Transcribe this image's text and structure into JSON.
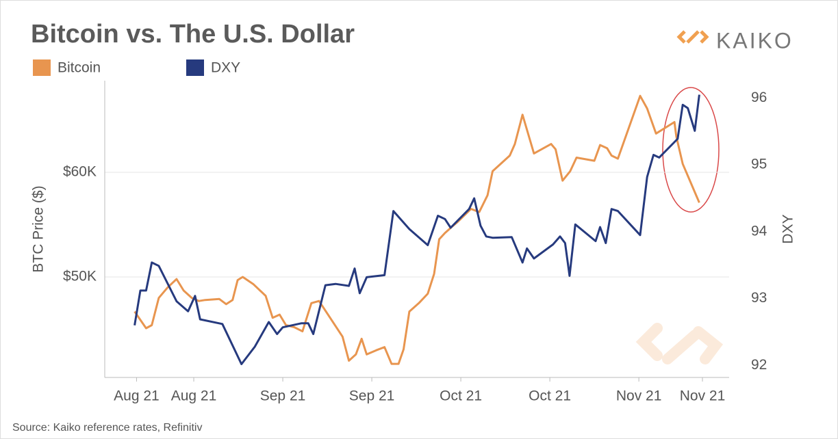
{
  "chart_data": {
    "type": "line",
    "title": "Bitcoin vs. The U.S. Dollar",
    "brand": "KAIKO",
    "source": "Source: Kaiko reference rates, Refinitiv",
    "ylabel": "BTC Price ($)",
    "y2label": "DXY",
    "xlim": [
      0,
      98.2
    ],
    "xticks": [
      {
        "value": 5,
        "label": "Aug 21"
      },
      {
        "value": 14,
        "label": "Aug 21"
      },
      {
        "value": 28,
        "label": "Sep 21"
      },
      {
        "value": 42,
        "label": "Sep 21"
      },
      {
        "value": 56,
        "label": "Oct 21"
      },
      {
        "value": 70,
        "label": "Oct 21"
      },
      {
        "value": 84,
        "label": "Nov 21"
      },
      {
        "value": 94,
        "label": "Nov 21"
      }
    ],
    "ylim": [
      40400,
      68750
    ],
    "yticks": [
      {
        "value": 50000,
        "label": "$50K"
      },
      {
        "value": 60000,
        "label": "$60K"
      }
    ],
    "y2lim": [
      91.82,
      96.26
    ],
    "y2ticks": [
      92,
      93,
      94,
      95,
      96
    ],
    "grid": true,
    "series": [
      {
        "name": "Bitcoin",
        "color": "#e8954f",
        "x": [
          4.7,
          6.5,
          7.4,
          8.5,
          9.9,
          11.3,
          12.4,
          13.7,
          14.8,
          15.8,
          18.0,
          19.1,
          20.1,
          20.9,
          21.7,
          23.4,
          25.3,
          26.4,
          27.5,
          28.5,
          29.8,
          31.1,
          32.5,
          33.7,
          35.0,
          37.4,
          38.4,
          39.5,
          40.4,
          41.2,
          42.7,
          44.0,
          45.1,
          46.2,
          47.0,
          47.9,
          49.4,
          50.8,
          51.8,
          52.6,
          53.5,
          54.6,
          55.4,
          57.6,
          58.9,
          60.2,
          61.0,
          63.7,
          64.5,
          65.7,
          67.5,
          70.2,
          70.9,
          72.0,
          73.2,
          74.2,
          77.0,
          77.9,
          79.0,
          79.7,
          80.7,
          84.2,
          85.3,
          86.7,
          89.6,
          89.9,
          90.9,
          93.5
        ],
        "values": [
          46700,
          45100,
          45400,
          48000,
          49000,
          49800,
          48700,
          48000,
          47700,
          47800,
          47900,
          47400,
          47800,
          49700,
          50000,
          49300,
          48200,
          46100,
          46400,
          45400,
          45200,
          44800,
          47500,
          47700,
          46500,
          44300,
          42000,
          42600,
          44100,
          42600,
          43000,
          43300,
          41700,
          41700,
          43100,
          46700,
          47500,
          48400,
          50300,
          53600,
          54200,
          54800,
          55200,
          56500,
          56200,
          57800,
          60100,
          61600,
          62700,
          65500,
          61800,
          62700,
          62200,
          59200,
          60100,
          61400,
          61100,
          62600,
          62300,
          61600,
          61300,
          67300,
          66100,
          63700,
          64800,
          63400,
          60800,
          57100
        ]
      },
      {
        "name": "DXY",
        "color": "#263a7e",
        "axis": "y2",
        "x": [
          4.7,
          5.6,
          6.5,
          7.4,
          8.5,
          11.3,
          13.1,
          14.2,
          15.0,
          18.5,
          21.5,
          23.6,
          25.8,
          27.1,
          28.0,
          30.9,
          32.0,
          32.8,
          34.7,
          36.3,
          38.4,
          39.3,
          40.1,
          41.2,
          44.0,
          45.4,
          47.9,
          50.8,
          52.4,
          53.5,
          54.4,
          57.3,
          58.1,
          59.1,
          60.0,
          61.0,
          64.0,
          65.7,
          66.4,
          67.5,
          70.5,
          71.6,
          72.4,
          73.1,
          74.0,
          77.2,
          77.9,
          78.8,
          79.7,
          80.7,
          84.2,
          85.3,
          86.3,
          87.2,
          90.1,
          90.9,
          91.7,
          92.8,
          93.5
        ],
        "values": [
          92.6,
          93.12,
          93.12,
          93.54,
          93.49,
          92.96,
          92.81,
          93.04,
          92.69,
          92.62,
          92.02,
          92.28,
          92.65,
          92.47,
          92.57,
          92.63,
          92.63,
          92.47,
          93.2,
          93.22,
          93.19,
          93.45,
          93.08,
          93.32,
          93.35,
          94.31,
          94.04,
          93.8,
          94.24,
          94.19,
          94.06,
          94.34,
          94.5,
          94.09,
          93.93,
          93.91,
          93.92,
          93.54,
          93.75,
          93.6,
          93.81,
          93.93,
          93.83,
          93.34,
          94.11,
          93.86,
          94.07,
          93.83,
          94.34,
          94.31,
          93.95,
          94.82,
          95.15,
          95.11,
          95.39,
          95.9,
          95.85,
          95.51,
          96.05
        ]
      }
    ]
  }
}
